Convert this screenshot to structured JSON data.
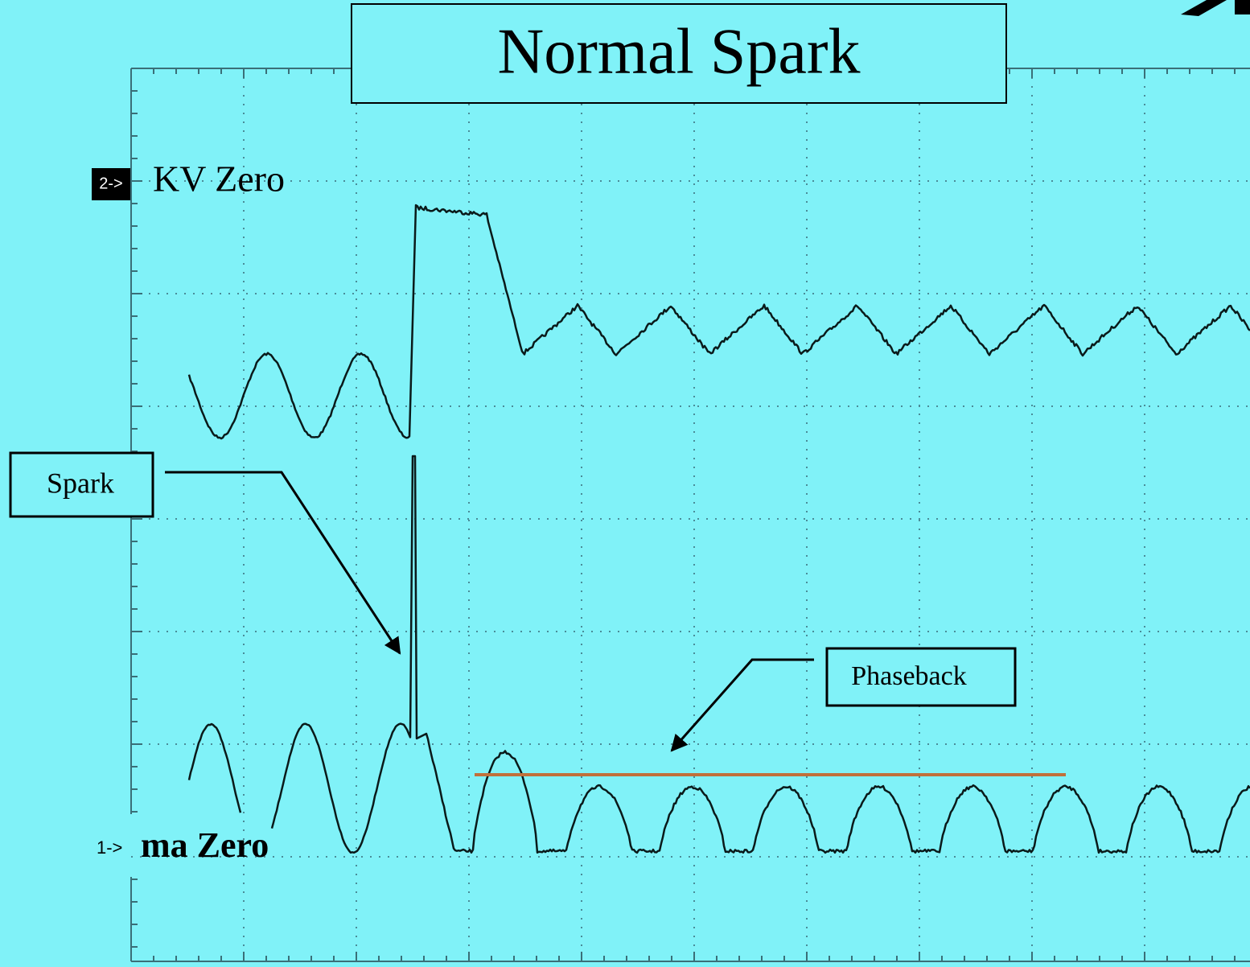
{
  "title": "Normal Spark",
  "channels": [
    {
      "marker": "2->",
      "label": "KV Zero"
    },
    {
      "marker": "1->",
      "label": "ma Zero"
    }
  ],
  "annotations": [
    "Spark",
    "Phaseback"
  ]
}
